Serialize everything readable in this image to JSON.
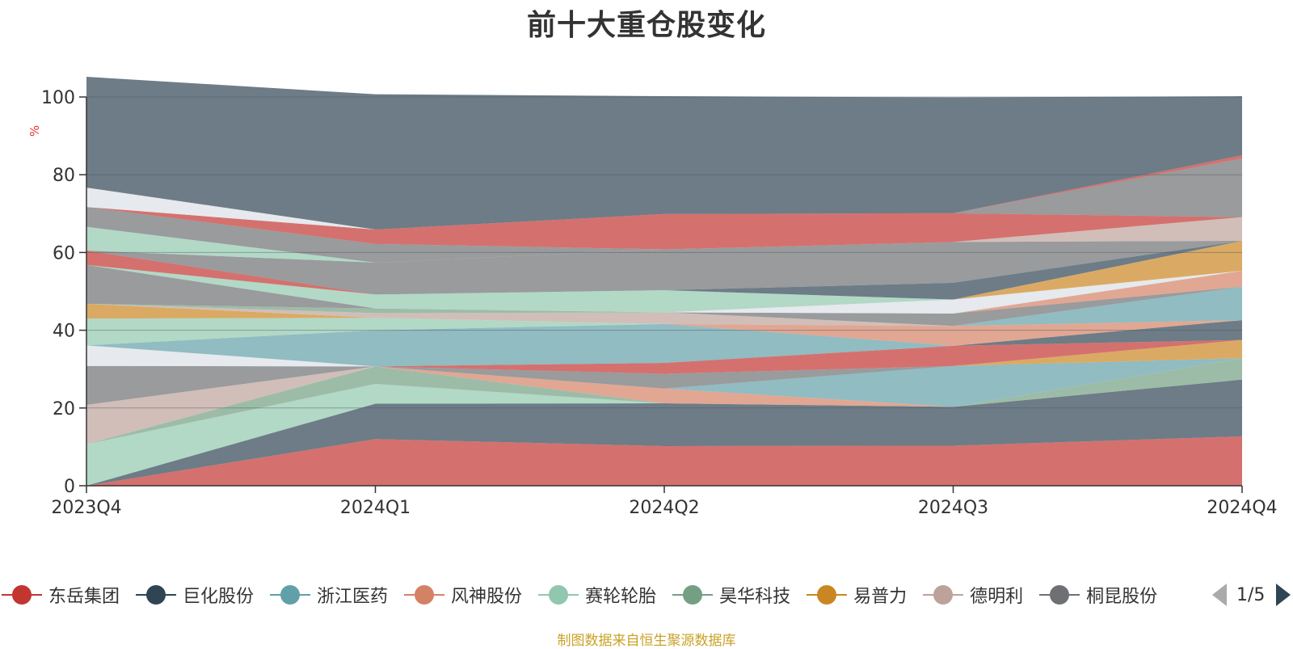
{
  "title": "前十大重仓股变化",
  "source_note": "制图数据来自恒生聚源数据库",
  "legend": {
    "page_text": "1/5",
    "items": [
      {
        "name": "东岳集团",
        "color": "#c23531"
      },
      {
        "name": "巨化股份",
        "color": "#2f4554"
      },
      {
        "name": "浙江医药",
        "color": "#61a0a8"
      },
      {
        "name": "风神股份",
        "color": "#d48265"
      },
      {
        "name": "赛轮轮胎",
        "color": "#91c7ae"
      },
      {
        "name": "昊华科技",
        "color": "#749f83"
      },
      {
        "name": "易普力",
        "color": "#ca8622"
      },
      {
        "name": "德明利",
        "color": "#bda29a"
      },
      {
        "name": "桐昆股份",
        "color": "#6e7074"
      }
    ]
  },
  "chart_data": {
    "type": "area",
    "stacked": true,
    "title": "前十大重仓股变化",
    "ylabel": "%",
    "ylim": [
      0,
      100
    ],
    "yticks": [
      0,
      20,
      40,
      60,
      80,
      100
    ],
    "grid": true,
    "legend_position": "bottom",
    "x": [
      "2023Q4",
      "2024Q1",
      "2024Q2",
      "2024Q3",
      "2024Q4"
    ],
    "bands": [
      {
        "color": "#c23531",
        "values": [
          0,
          12,
          10.2,
          10.3,
          12.7
        ]
      },
      {
        "color": "#2f4554",
        "values": [
          0,
          9.1,
          11,
          10,
          14.6
        ]
      },
      {
        "color": "#91c7ae",
        "values": [
          10.7,
          5.1,
          0,
          0,
          0
        ]
      },
      {
        "color": "#749f83",
        "values": [
          0,
          4.5,
          0,
          0,
          5.5
        ]
      },
      {
        "color": "#d48265",
        "values": [
          0,
          0,
          3.8,
          0,
          0
        ]
      },
      {
        "color": "#61a0a8",
        "values": [
          0,
          0,
          0,
          10.5,
          0
        ]
      },
      {
        "color": "#bda29a",
        "values": [
          10.1,
          0,
          0,
          0,
          0
        ]
      },
      {
        "color": "#6e7074",
        "values": [
          10,
          0,
          3.8,
          0,
          0
        ]
      },
      {
        "color": "#ca8622",
        "values": [
          0,
          0,
          0,
          0,
          4.7
        ]
      },
      {
        "color": "#c23531",
        "values": [
          0,
          0,
          2.8,
          5.2,
          0
        ]
      },
      {
        "color": "#dcdfe6",
        "values": [
          5.3,
          0,
          0,
          0,
          0
        ]
      },
      {
        "color": "#61a0a8",
        "values": [
          0,
          9.3,
          10,
          0,
          0
        ]
      },
      {
        "color": "#2f4554",
        "values": [
          0,
          0,
          0,
          0,
          5.1
        ]
      },
      {
        "color": "#d48265",
        "values": [
          0,
          0,
          0,
          5.1,
          0
        ]
      },
      {
        "color": "#c23531",
        "values": [
          0,
          0,
          0,
          0,
          0
        ]
      },
      {
        "color": "#91c7ae",
        "values": [
          6.9,
          3.2,
          0,
          0,
          0
        ]
      },
      {
        "color": "#61a0a8",
        "values": [
          0,
          0,
          0,
          0,
          8.6
        ]
      },
      {
        "color": "#ca8622",
        "values": [
          3.8,
          0,
          0,
          0,
          0
        ]
      },
      {
        "color": "#bda29a",
        "values": [
          0,
          1.2,
          3,
          0,
          0
        ]
      },
      {
        "color": "#6e7074",
        "values": [
          0,
          0,
          0,
          3.2,
          0
        ]
      },
      {
        "color": "#749f83",
        "values": [
          0,
          1.2,
          0,
          0,
          0
        ]
      },
      {
        "color": "#d48265",
        "values": [
          0,
          0,
          0,
          0,
          4.1
        ]
      },
      {
        "color": "#6e7074",
        "values": [
          10,
          0,
          0,
          0,
          0
        ]
      },
      {
        "color": "#dcdfe6",
        "values": [
          0,
          0,
          0,
          3.6,
          0
        ]
      },
      {
        "color": "#91c7ae",
        "values": [
          0,
          3.6,
          5.7,
          0,
          0
        ]
      },
      {
        "color": "#c23531",
        "values": [
          3.7,
          0,
          0,
          0,
          0
        ]
      },
      {
        "color": "#ca8622",
        "values": [
          0,
          0,
          0,
          0,
          7.7
        ]
      },
      {
        "color": "#2f4554",
        "values": [
          0,
          0,
          0,
          4.3,
          0
        ]
      },
      {
        "color": "#6e7074",
        "values": [
          0,
          8.2,
          10.5,
          10.5,
          0
        ]
      },
      {
        "color": "#91c7ae",
        "values": [
          6.1,
          0,
          0,
          0,
          0
        ]
      },
      {
        "color": "#bda29a",
        "values": [
          0,
          0,
          0,
          0,
          6.1
        ]
      },
      {
        "color": "#6e7074",
        "values": [
          5.1,
          4.8,
          0,
          0,
          0
        ]
      },
      {
        "color": "#c23531",
        "values": [
          0,
          3.7,
          9.1,
          7.4,
          0
        ]
      },
      {
        "color": "#6e7074",
        "values": [
          0,
          0,
          0,
          0,
          15.1
        ]
      },
      {
        "color": "#dcdfe6",
        "values": [
          5,
          0,
          0,
          0,
          0
        ]
      },
      {
        "color": "#c23531",
        "values": [
          0,
          0,
          0,
          0,
          0.8
        ]
      },
      {
        "color": "#2f4554",
        "values": [
          28.5,
          34.8,
          30.3,
          29.8,
          15.2
        ]
      }
    ]
  }
}
